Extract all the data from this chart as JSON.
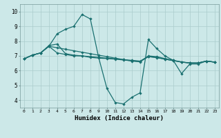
{
  "xlabel": "Humidex (Indice chaleur)",
  "bg_color": "#cce8e8",
  "grid_color": "#aacccc",
  "line_color": "#1a7070",
  "xlim": [
    -0.5,
    23.5
  ],
  "ylim": [
    3.5,
    10.5
  ],
  "xticks": [
    0,
    1,
    2,
    3,
    4,
    5,
    6,
    7,
    8,
    9,
    10,
    11,
    12,
    13,
    14,
    15,
    16,
    17,
    18,
    19,
    20,
    21,
    22,
    23
  ],
  "yticks": [
    4,
    5,
    6,
    7,
    8,
    9,
    10
  ],
  "line1_x": [
    0,
    1,
    2,
    3,
    4,
    5,
    6,
    7,
    8,
    9,
    10,
    11,
    12,
    13,
    14,
    15,
    16,
    17,
    18,
    19,
    20,
    21,
    22,
    23
  ],
  "line1_y": [
    6.8,
    7.05,
    7.2,
    7.65,
    7.55,
    7.45,
    7.35,
    7.25,
    7.15,
    7.05,
    6.95,
    6.85,
    6.75,
    6.65,
    6.6,
    6.95,
    6.9,
    6.78,
    6.68,
    6.58,
    6.52,
    6.52,
    6.65,
    6.58
  ],
  "line2_x": [
    0,
    1,
    2,
    3,
    4,
    5,
    6,
    7,
    8,
    9,
    10,
    11,
    12,
    13,
    14,
    15,
    16,
    17,
    18,
    19,
    20,
    21,
    22,
    23
  ],
  "line2_y": [
    6.8,
    7.05,
    7.2,
    7.65,
    8.5,
    8.8,
    9.0,
    9.8,
    9.5,
    6.9,
    4.8,
    3.85,
    3.75,
    4.2,
    4.5,
    8.1,
    7.5,
    7.0,
    6.7,
    5.8,
    6.45,
    6.45,
    6.65,
    6.58
  ],
  "line3_x": [
    0,
    1,
    2,
    3,
    4,
    5,
    6,
    7,
    8,
    9,
    10,
    11,
    12,
    13,
    14,
    15,
    16,
    17,
    18,
    19,
    20,
    21,
    22,
    23
  ],
  "line3_y": [
    6.8,
    7.05,
    7.2,
    7.65,
    7.2,
    7.1,
    7.0,
    7.0,
    6.9,
    6.85,
    6.82,
    6.78,
    6.72,
    6.67,
    6.62,
    7.0,
    6.95,
    6.82,
    6.7,
    6.6,
    6.52,
    6.52,
    6.65,
    6.58
  ],
  "line4_x": [
    0,
    1,
    2,
    3,
    4,
    5,
    6,
    7,
    8,
    9,
    10,
    11,
    12,
    13,
    14,
    15,
    16,
    17,
    18,
    19,
    20,
    21,
    22,
    23
  ],
  "line4_y": [
    6.8,
    7.05,
    7.2,
    7.7,
    7.8,
    7.15,
    7.05,
    7.0,
    6.95,
    6.9,
    6.85,
    6.8,
    6.75,
    6.7,
    6.65,
    6.95,
    6.88,
    6.78,
    6.68,
    6.58,
    6.52,
    6.52,
    6.65,
    6.58
  ]
}
